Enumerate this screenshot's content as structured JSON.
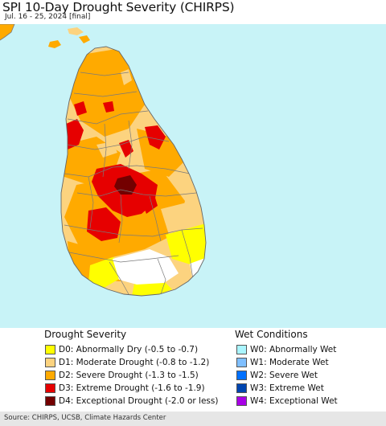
{
  "header": {
    "title": "SPI 10-Day Drought Severity (CHIRPS)",
    "subtitle": "Jul. 16 - 25, 2024 [final]"
  },
  "map": {
    "region": "Sri Lanka",
    "ocean_color": "#c8f3f7",
    "land_outside_color": "#e8e8e8",
    "boundary_color": "#7a7a7a"
  },
  "legend": {
    "drought": {
      "title": "Drought Severity",
      "items": [
        {
          "label": "D0: Abnormally Dry (-0.5 to -0.7)",
          "color": "#ffff00"
        },
        {
          "label": "D1: Moderate Drought (-0.8 to -1.2)",
          "color": "#fcd37f"
        },
        {
          "label": "D2: Severe Drought (-1.3 to -1.5)",
          "color": "#ffaa00"
        },
        {
          "label": "D3: Extreme Drought (-1.6 to -1.9)",
          "color": "#e60000"
        },
        {
          "label": "D4: Exceptional Drought (-2.0 or less)",
          "color": "#730000"
        }
      ]
    },
    "wet": {
      "title": "Wet Conditions",
      "items": [
        {
          "label": "W0: Abnormally Wet",
          "color": "#aaf5ff"
        },
        {
          "label": "W1: Moderate Wet",
          "color": "#7fbfff"
        },
        {
          "label": "W2: Severe Wet",
          "color": "#0070ff"
        },
        {
          "label": "W3: Extreme Wet",
          "color": "#0045b0"
        },
        {
          "label": "W4: Exceptional Wet",
          "color": "#a800e6"
        }
      ]
    }
  },
  "footer": {
    "source": "Source: CHIRPS, UCSB, Climate Hazards Center"
  }
}
